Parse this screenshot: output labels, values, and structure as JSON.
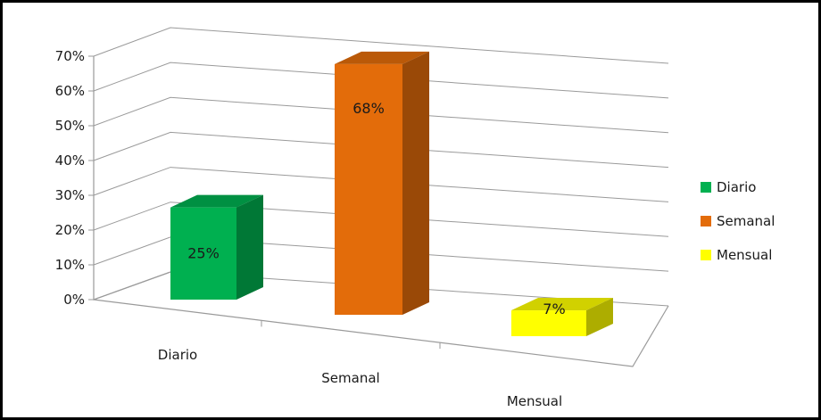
{
  "chart_data": {
    "type": "bar",
    "style": "3d-column",
    "categories": [
      "Diario",
      "Semanal",
      "Mensual"
    ],
    "values": [
      25,
      68,
      7
    ],
    "data_labels": [
      "25%",
      "68%",
      "7%"
    ],
    "colors": [
      "#00b050",
      "#e36c0a",
      "#ffff00"
    ],
    "yaxis": {
      "ticks": [
        "0%",
        "10%",
        "20%",
        "30%",
        "40%",
        "50%",
        "60%",
        "70%"
      ],
      "ylim": [
        0,
        70
      ],
      "unit": "%"
    },
    "grid": true,
    "legend": {
      "placement": "right",
      "entries": [
        "Diario",
        "Semanal",
        "Mensual"
      ]
    },
    "title": "",
    "xlabel": "",
    "ylabel": ""
  }
}
